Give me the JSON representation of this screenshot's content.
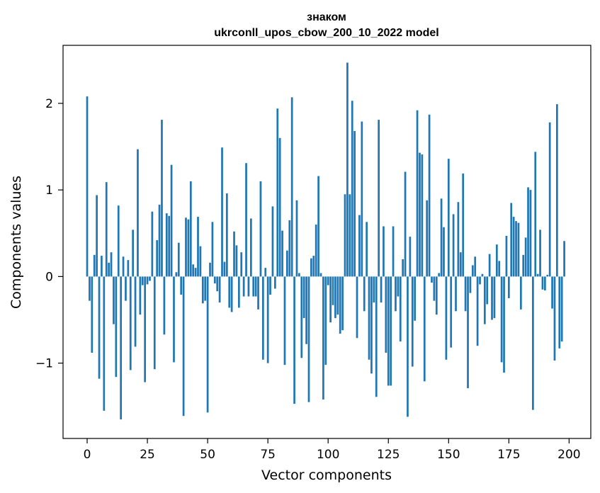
{
  "chart_data": {
    "type": "bar",
    "title_line1": "знаком",
    "title_line2": "ukrconll_upos_cbow_200_10_2022 model",
    "xlabel": "Vector components",
    "ylabel": "Components values",
    "xlim": [
      -10,
      209
    ],
    "ylim": [
      -1.87,
      2.67
    ],
    "xticks": [
      0,
      25,
      50,
      75,
      100,
      125,
      150,
      175,
      200
    ],
    "yticks": [
      -1,
      0,
      1,
      2
    ],
    "ytick_labels": [
      "−1",
      "0",
      "1",
      "2"
    ],
    "color": "#1f77b4",
    "values": [
      2.08,
      -0.28,
      -0.88,
      0.25,
      0.94,
      -1.18,
      0.24,
      -1.55,
      1.09,
      0.16,
      0.28,
      -0.55,
      -1.16,
      0.82,
      -1.65,
      0.23,
      -0.28,
      0.19,
      -1.08,
      0.54,
      -0.81,
      1.47,
      -0.44,
      -0.1,
      -1.22,
      -0.09,
      -0.05,
      0.75,
      -1.07,
      0.42,
      0.83,
      1.81,
      -0.67,
      0.73,
      0.7,
      1.29,
      -0.99,
      0.05,
      0.39,
      -0.21,
      -1.61,
      0.68,
      0.66,
      1.1,
      0.14,
      0.1,
      0.69,
      0.35,
      -0.31,
      -0.28,
      -1.57,
      0.16,
      0.63,
      -0.08,
      -0.17,
      -0.3,
      1.49,
      0.17,
      0.96,
      -0.36,
      -0.41,
      0.52,
      0.36,
      -0.36,
      0.28,
      -0.23,
      1.31,
      -0.23,
      0.67,
      -0.23,
      -0.23,
      -0.38,
      1.1,
      -0.96,
      0.1,
      -1.0,
      -0.21,
      0.81,
      -0.14,
      1.94,
      1.6,
      0.53,
      -1.02,
      0.3,
      0.65,
      2.07,
      -1.47,
      0.88,
      0.04,
      -0.94,
      -0.48,
      -0.78,
      -1.45,
      0.21,
      0.24,
      0.6,
      1.16,
      0.04,
      -1.42,
      -1.02,
      -0.1,
      -0.53,
      -0.33,
      -0.48,
      -0.44,
      -0.66,
      -0.62,
      0.95,
      2.47,
      0.95,
      2.03,
      1.68,
      -0.71,
      0.71,
      1.79,
      -0.4,
      0.63,
      -0.96,
      -1.12,
      -0.3,
      -1.39,
      1.81,
      -0.3,
      0.58,
      -0.88,
      -1.26,
      -1.26,
      0.58,
      -0.4,
      -0.23,
      -0.75,
      0.2,
      1.21,
      -1.62,
      0.46,
      -1.04,
      -0.51,
      1.92,
      1.43,
      1.41,
      -1.21,
      0.88,
      1.87,
      -0.07,
      -0.28,
      -0.44,
      0.04,
      0.9,
      0.57,
      -0.96,
      1.36,
      -0.82,
      0.72,
      -0.4,
      0.86,
      0.28,
      1.19,
      -0.4,
      -1.29,
      -0.19,
      0.13,
      0.23,
      -0.8,
      -0.09,
      0.03,
      -0.55,
      -0.32,
      0.26,
      -0.5,
      -0.48,
      0.37,
      0.18,
      -0.99,
      -1.11,
      0.47,
      -0.25,
      0.85,
      0.69,
      0.64,
      0.62,
      -0.38,
      0.25,
      0.45,
      1.03,
      1.0,
      -1.54,
      1.44,
      0.03,
      0.54,
      -0.15,
      -0.16,
      0.02,
      1.78,
      -0.37,
      -0.97,
      1.99,
      -0.83,
      -0.75,
      0.41
    ]
  }
}
